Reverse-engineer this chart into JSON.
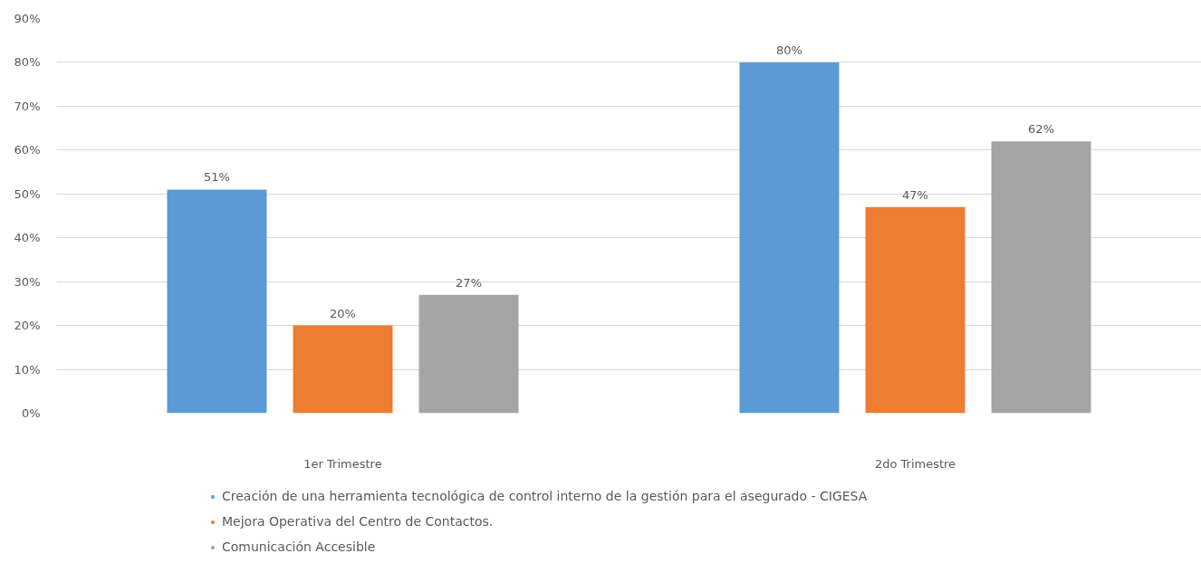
{
  "chart_data": {
    "type": "bar",
    "categories": [
      "1er Trimestre",
      "2do Trimestre"
    ],
    "series": [
      {
        "name": "Creación de una herramienta tecnológica de control interno de la gestión para el asegurado - CIGESA",
        "color": "#5b9bd5",
        "values": [
          51,
          80
        ],
        "value_labels": [
          "51%",
          "80%"
        ]
      },
      {
        "name": "Mejora Operativa del Centro de Contactos.",
        "color": "#ed7d31",
        "values": [
          20,
          47
        ],
        "value_labels": [
          "20%",
          "47%"
        ]
      },
      {
        "name": "Comunicación Accesible",
        "color": "#a5a5a5",
        "values": [
          27,
          62
        ],
        "value_labels": [
          "27%",
          "62%"
        ]
      }
    ],
    "ylim": [
      0,
      90
    ],
    "yticks": [
      {
        "value": 0,
        "label": "0%"
      },
      {
        "value": 10,
        "label": "10%"
      },
      {
        "value": 20,
        "label": "20%"
      },
      {
        "value": 30,
        "label": "30%"
      },
      {
        "value": 40,
        "label": "40%"
      },
      {
        "value": 50,
        "label": "50%"
      },
      {
        "value": 60,
        "label": "60%"
      },
      {
        "value": 70,
        "label": "70%"
      },
      {
        "value": 80,
        "label": "80%"
      },
      {
        "value": 90,
        "label": "90%"
      }
    ],
    "grid": "y",
    "legend": "bottom"
  }
}
